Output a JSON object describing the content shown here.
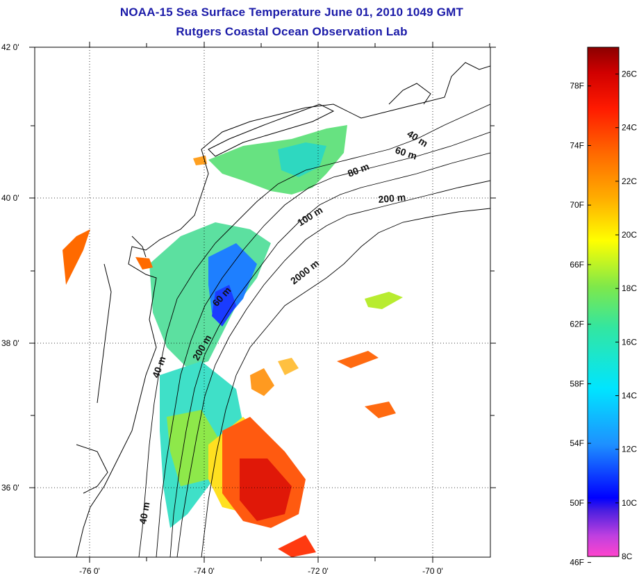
{
  "title": "NOAA-15 Sea Surface Temperature June 01, 2010 1049 GMT",
  "subtitle": "Rutgers Coastal Ocean Observation Lab",
  "map": {
    "lat_labels": [
      "42 0'",
      "40 0'",
      "38 0'",
      "36 0'"
    ],
    "lon_labels": [
      "-76 0'",
      "-74 0'",
      "-72 0'",
      "-70 0'"
    ],
    "lat_range": [
      35.0,
      42.0
    ],
    "lon_range": [
      -77.0,
      -69.0
    ],
    "grid": "dotted",
    "isobath_labels": [
      "40 m",
      "60 m",
      "80 m",
      "200 m",
      "100 m",
      "2000 m",
      "60 m",
      "200 m",
      "40 m",
      "40 m"
    ]
  },
  "colorbar": {
    "fahrenheit_labels": [
      "78F",
      "74F",
      "70F",
      "66F",
      "62F",
      "58F",
      "54F",
      "50F",
      "46F"
    ],
    "celsius_labels": [
      "26C",
      "24C",
      "22C",
      "20C",
      "18C",
      "16C",
      "14C",
      "12C",
      "10C",
      "8C"
    ],
    "range_c": [
      8,
      27
    ],
    "colors": [
      "#ff44cc",
      "#8a2be2",
      "#0000ff",
      "#1e90ff",
      "#00e5ff",
      "#33e6a0",
      "#7fe84a",
      "#ffff00",
      "#ffb000",
      "#ff6a00",
      "#ff1a00",
      "#d00000",
      "#8b0000"
    ]
  }
}
